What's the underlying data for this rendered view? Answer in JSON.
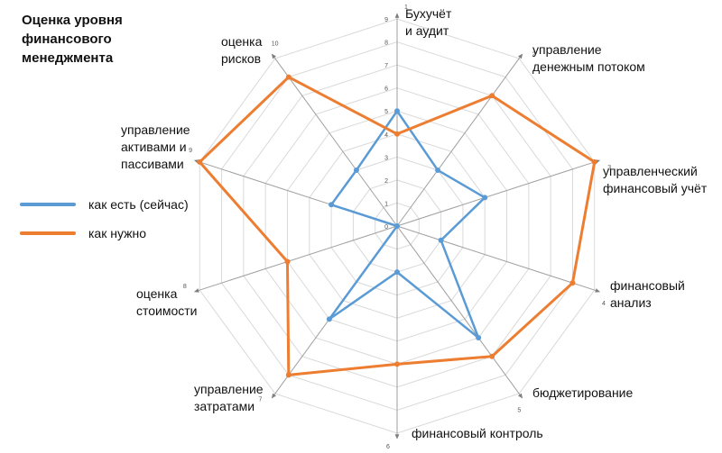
{
  "chart_data": {
    "type": "radar",
    "title": "Оценка уровня\nфинансового\nменеджмента",
    "axis_numbers": [
      "1",
      "2",
      "3",
      "4",
      "5",
      "6",
      "7",
      "8",
      "9",
      "10"
    ],
    "categories": [
      "Бухучёт\nи аудит",
      "управление\nденежным потоком",
      "управленческий\nфинансовый учёт",
      "финансовый\nанализ",
      "бюджетирование",
      "финансовый контроль",
      "управление\nзатратами",
      "оценка\nстоимости",
      "управление\nактивами и\nпассивами",
      "оценка\nрисков"
    ],
    "rlim": [
      0,
      9
    ],
    "ticks": [
      "0",
      "1",
      "2",
      "3",
      "4",
      "5",
      "6",
      "7",
      "8",
      "9"
    ],
    "grid": true,
    "legend_position": "left",
    "series": [
      {
        "name": "как есть (сейчас)",
        "color": "#5b9bd5",
        "values": [
          5,
          3,
          4,
          2,
          6,
          2,
          5,
          0,
          3,
          3
        ]
      },
      {
        "name": "как нужно",
        "color": "#ed7d31",
        "values": [
          4,
          7,
          9,
          8,
          7,
          6,
          8,
          5,
          9,
          8
        ]
      }
    ]
  }
}
